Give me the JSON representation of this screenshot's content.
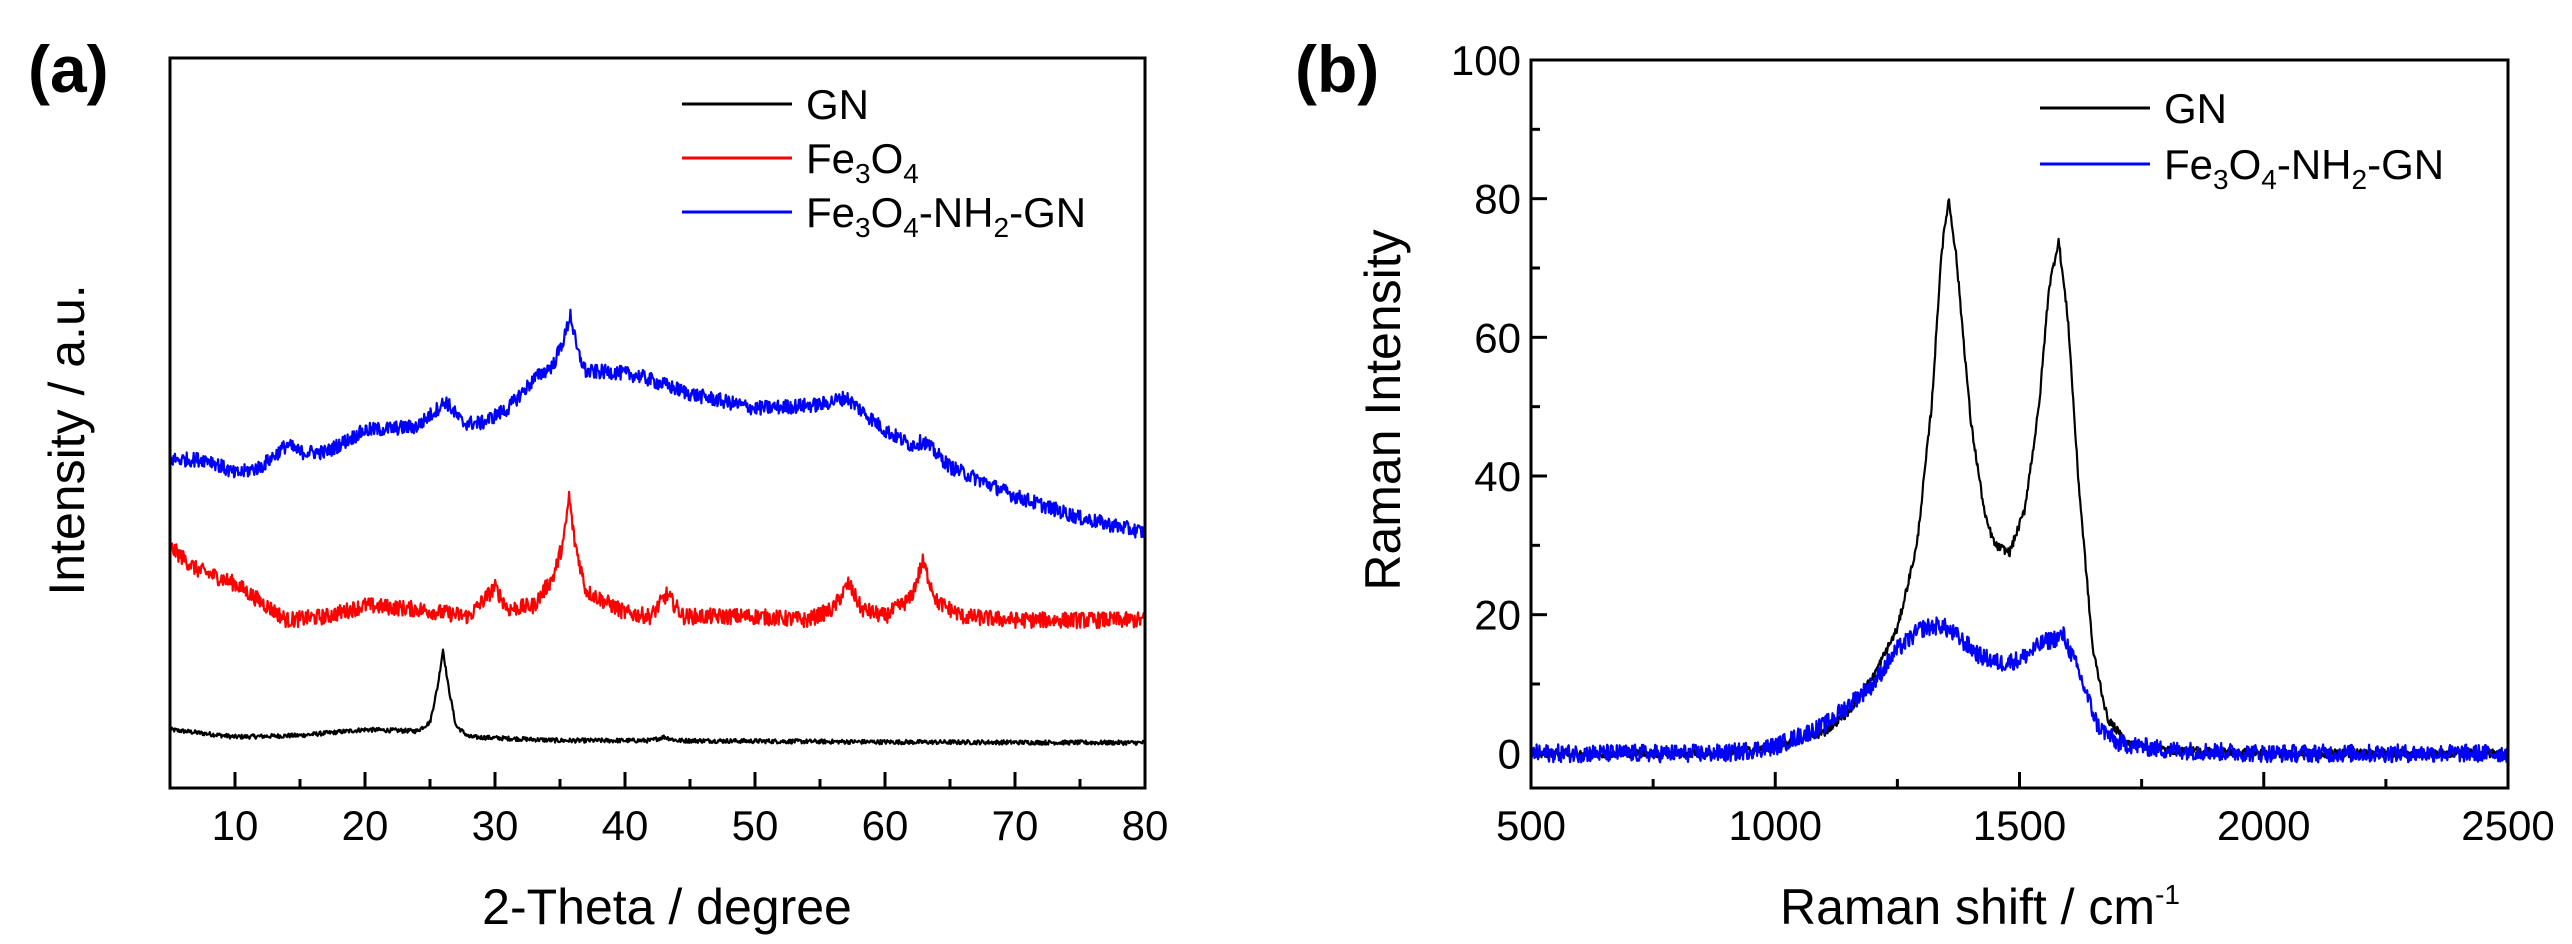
{
  "chart_data": [
    {
      "panel_label": "(a)",
      "type": "line",
      "title": "",
      "xlabel": "2-Theta / degree",
      "ylabel": "Intensity / a.u.",
      "xlim": [
        5,
        80
      ],
      "ylim": [
        0,
        1
      ],
      "xticks": [
        "10",
        "20",
        "30",
        "40",
        "50",
        "60",
        "70",
        "80"
      ],
      "yticks_shown": false,
      "legend_position": "top-right",
      "series": [
        {
          "name": "GN",
          "legend_parts": [
            {
              "t": "GN"
            }
          ],
          "color": "#000000",
          "noise": 0.003,
          "points": [
            [
              5,
              0.08
            ],
            [
              10,
              0.07
            ],
            [
              15,
              0.072
            ],
            [
              20,
              0.08
            ],
            [
              24,
              0.078
            ],
            [
              25,
              0.09
            ],
            [
              25.6,
              0.14
            ],
            [
              26,
              0.19
            ],
            [
              26.4,
              0.14
            ],
            [
              27,
              0.085
            ],
            [
              28,
              0.07
            ],
            [
              35,
              0.065
            ],
            [
              42,
              0.065
            ],
            [
              43,
              0.07
            ],
            [
              44,
              0.065
            ],
            [
              60,
              0.063
            ],
            [
              80,
              0.062
            ]
          ]
        },
        {
          "name": "Fe3O4",
          "legend_parts": [
            {
              "t": "Fe"
            },
            {
              "t": "3",
              "sub": true
            },
            {
              "t": "O"
            },
            {
              "t": "4",
              "sub": true
            }
          ],
          "color": "#ff0000",
          "noise": 0.011,
          "points": [
            [
              5,
              0.33
            ],
            [
              7,
              0.3
            ],
            [
              10,
              0.28
            ],
            [
              14,
              0.23
            ],
            [
              17,
              0.235
            ],
            [
              20,
              0.25
            ],
            [
              24,
              0.245
            ],
            [
              28,
              0.235
            ],
            [
              30,
              0.275
            ],
            [
              31,
              0.245
            ],
            [
              33,
              0.25
            ],
            [
              34.5,
              0.29
            ],
            [
              35.3,
              0.34
            ],
            [
              35.7,
              0.4
            ],
            [
              36.1,
              0.34
            ],
            [
              37,
              0.27
            ],
            [
              40,
              0.24
            ],
            [
              42,
              0.235
            ],
            [
              43.2,
              0.265
            ],
            [
              44.5,
              0.235
            ],
            [
              50,
              0.235
            ],
            [
              54,
              0.23
            ],
            [
              56,
              0.245
            ],
            [
              57.2,
              0.28
            ],
            [
              58.2,
              0.245
            ],
            [
              60,
              0.235
            ],
            [
              62,
              0.26
            ],
            [
              62.9,
              0.31
            ],
            [
              64,
              0.255
            ],
            [
              66,
              0.235
            ],
            [
              70,
              0.23
            ],
            [
              75,
              0.23
            ],
            [
              80,
              0.23
            ]
          ]
        },
        {
          "name": "Fe3O4-NH2-GN",
          "legend_parts": [
            {
              "t": "Fe"
            },
            {
              "t": "3",
              "sub": true
            },
            {
              "t": "O"
            },
            {
              "t": "4",
              "sub": true
            },
            {
              "t": "-NH"
            },
            {
              "t": "2",
              "sub": true
            },
            {
              "t": "-GN"
            }
          ],
          "color": "#0000ff",
          "noise": 0.01,
          "points": [
            [
              5,
              0.45
            ],
            [
              8,
              0.45
            ],
            [
              10,
              0.43
            ],
            [
              12,
              0.44
            ],
            [
              14,
              0.47
            ],
            [
              15,
              0.46
            ],
            [
              17,
              0.46
            ],
            [
              20,
              0.49
            ],
            [
              24,
              0.495
            ],
            [
              25.6,
              0.52
            ],
            [
              26.2,
              0.53
            ],
            [
              27.5,
              0.5
            ],
            [
              29,
              0.5
            ],
            [
              31,
              0.52
            ],
            [
              33,
              0.56
            ],
            [
              34.5,
              0.58
            ],
            [
              35.4,
              0.62
            ],
            [
              35.8,
              0.65
            ],
            [
              36.3,
              0.6
            ],
            [
              37,
              0.57
            ],
            [
              39,
              0.57
            ],
            [
              41,
              0.565
            ],
            [
              45,
              0.54
            ],
            [
              50,
              0.52
            ],
            [
              55,
              0.525
            ],
            [
              57,
              0.535
            ],
            [
              58,
              0.52
            ],
            [
              60,
              0.49
            ],
            [
              62,
              0.47
            ],
            [
              63,
              0.475
            ],
            [
              65,
              0.44
            ],
            [
              70,
              0.4
            ],
            [
              75,
              0.37
            ],
            [
              80,
              0.35
            ]
          ]
        }
      ]
    },
    {
      "panel_label": "(b)",
      "type": "line",
      "title": "",
      "xlabel": "Raman shift / cm",
      "xlabel_superscript": "-1",
      "ylabel": "Raman Intensity",
      "xlim": [
        500,
        2500
      ],
      "ylim": [
        -5,
        100
      ],
      "xticks": [
        "500",
        "1000",
        "1500",
        "2000",
        "2500"
      ],
      "yticks": [
        "0",
        "20",
        "40",
        "60",
        "80",
        "100"
      ],
      "legend_position": "top-right",
      "series": [
        {
          "name": "GN",
          "legend_parts": [
            {
              "t": "GN"
            }
          ],
          "color": "#000000",
          "noise": 0.6,
          "points": [
            [
              500,
              0
            ],
            [
              900,
              0
            ],
            [
              1000,
              0.8
            ],
            [
              1100,
              3
            ],
            [
              1150,
              6
            ],
            [
              1200,
              11
            ],
            [
              1250,
              18
            ],
            [
              1290,
              30
            ],
            [
              1320,
              50
            ],
            [
              1340,
              72
            ],
            [
              1355,
              80
            ],
            [
              1370,
              72
            ],
            [
              1400,
              48
            ],
            [
              1430,
              34
            ],
            [
              1450,
              30
            ],
            [
              1480,
              29
            ],
            [
              1510,
              35
            ],
            [
              1540,
              50
            ],
            [
              1560,
              67
            ],
            [
              1580,
              74
            ],
            [
              1600,
              62
            ],
            [
              1620,
              40
            ],
            [
              1650,
              15
            ],
            [
              1680,
              5
            ],
            [
              1720,
              1.5
            ],
            [
              1800,
              0.5
            ],
            [
              2000,
              0
            ],
            [
              2500,
              0
            ]
          ]
        },
        {
          "name": "Fe3O4-NH2-GN",
          "legend_parts": [
            {
              "t": "Fe"
            },
            {
              "t": "3",
              "sub": true
            },
            {
              "t": "O"
            },
            {
              "t": "4",
              "sub": true
            },
            {
              "t": "-NH"
            },
            {
              "t": "2",
              "sub": true
            },
            {
              "t": "-GN"
            }
          ],
          "color": "#0000ff",
          "noise": 1.3,
          "points": [
            [
              500,
              0
            ],
            [
              900,
              0
            ],
            [
              1000,
              1
            ],
            [
              1100,
              4
            ],
            [
              1200,
              10
            ],
            [
              1250,
              15
            ],
            [
              1300,
              18
            ],
            [
              1340,
              18.5
            ],
            [
              1370,
              17
            ],
            [
              1420,
              14
            ],
            [
              1460,
              13
            ],
            [
              1500,
              13.5
            ],
            [
              1550,
              16
            ],
            [
              1590,
              17
            ],
            [
              1620,
              12
            ],
            [
              1660,
              4
            ],
            [
              1700,
              1.5
            ],
            [
              1800,
              0.5
            ],
            [
              2000,
              0
            ],
            [
              2500,
              0
            ]
          ]
        }
      ]
    }
  ]
}
